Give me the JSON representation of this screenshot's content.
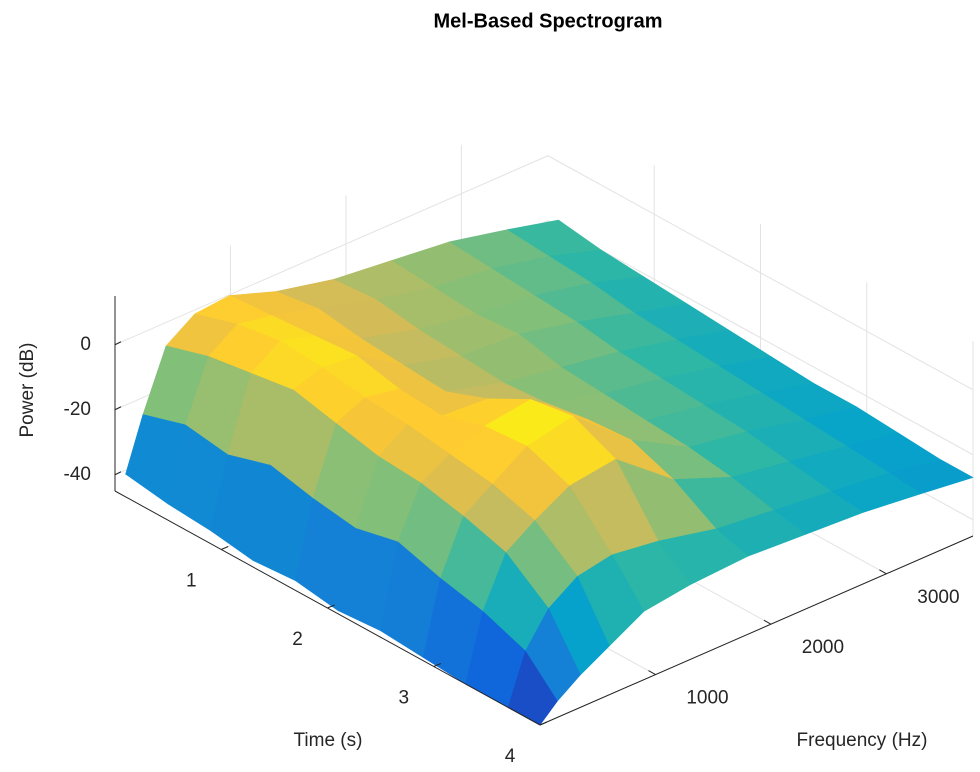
{
  "chart_data": {
    "type": "surface",
    "title": "Mel-Based Spectrogram",
    "x_label": "Time (s)",
    "y_label": "Frequency (Hz)",
    "z_label": "Power (dB)",
    "x": [
      0.1,
      0.5,
      0.9,
      1.3,
      1.7,
      2.1,
      2.5,
      2.9,
      3.3,
      3.7,
      4.0
    ],
    "y": [
      0,
      150,
      350,
      600,
      900,
      1300,
      1800,
      2300,
      2800,
      3300,
      3750
    ],
    "z": [
      [
        -38,
        -22,
        -4,
        2,
        3,
        -2,
        -6,
        -8,
        -10,
        -14,
        -18
      ],
      [
        -40,
        -18,
        0,
        6,
        4,
        0,
        -5,
        -9,
        -11,
        -15,
        -20
      ],
      [
        -41,
        -20,
        2,
        8,
        5,
        -2,
        -7,
        -10,
        -12,
        -16,
        -21
      ],
      [
        -43,
        -16,
        4,
        7,
        6,
        -3,
        -8,
        -9,
        -13,
        -18,
        -22
      ],
      [
        -42,
        -19,
        1,
        5,
        3,
        -4,
        -9,
        -12,
        -15,
        -19,
        -23
      ],
      [
        -44,
        -21,
        -2,
        4,
        2,
        1,
        -8,
        -13,
        -16,
        -20,
        -24
      ],
      [
        -43,
        -18,
        -3,
        2,
        6,
        8,
        -6,
        -14,
        -17,
        -21,
        -25
      ],
      [
        -44,
        -22,
        -6,
        0,
        7,
        10,
        -5,
        -15,
        -18,
        -22,
        -25
      ],
      [
        -45,
        -25,
        -10,
        -4,
        2,
        4,
        -10,
        -17,
        -20,
        -23,
        -26
      ],
      [
        -45,
        -30,
        -20,
        -14,
        -12,
        -14,
        -18,
        -20,
        -22,
        -24,
        -27
      ],
      [
        -45,
        -40,
        -35,
        -30,
        -24,
        -22,
        -21,
        -22,
        -23,
        -25,
        -27
      ]
    ],
    "xlim": [
      0,
      4
    ],
    "ylim": [
      0,
      3750
    ],
    "zlim": [
      -45,
      15
    ],
    "xticks": [
      1,
      2,
      3,
      4
    ],
    "yticks": [
      1000,
      2000,
      3000
    ],
    "zticks": [
      -40,
      -20,
      0
    ],
    "grid": true,
    "colormap": [
      "#352a87",
      "#0f5cdd",
      "#1481d6",
      "#06a4ca",
      "#2eb7a4",
      "#87bf77",
      "#d1bb59",
      "#fec832",
      "#f9fb0e"
    ]
  }
}
